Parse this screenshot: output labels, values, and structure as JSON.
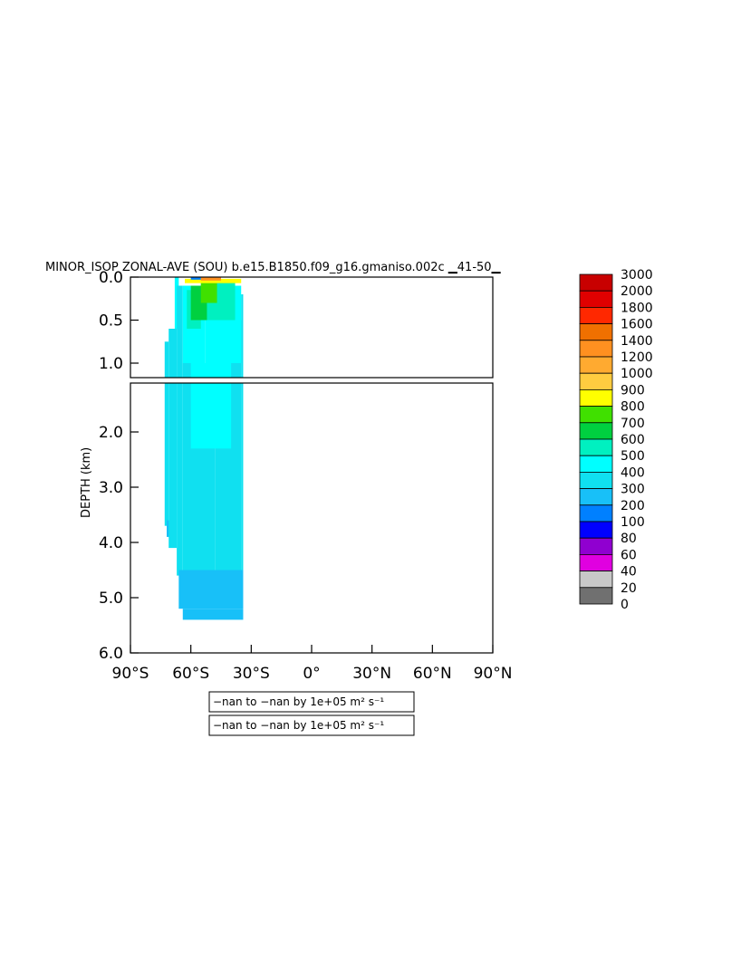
{
  "chart_data": {
    "type": "heatmap",
    "title": "MINOR_ISOP ZONAL-AVE (SOU) b.e15.B1850.f09_g16.gmaniso.002c ▁41-50▁",
    "ylabel": "DEPTH (km)",
    "xlabel": "",
    "xlim": [
      -90,
      90
    ],
    "ylim": [
      6.0,
      0.0
    ],
    "y_break_km": 1.1,
    "x_ticks": [
      -90,
      -60,
      -30,
      0,
      30,
      60,
      90
    ],
    "x_tick_labels": [
      "90°S",
      "60°S",
      "30°S",
      "0°",
      "30°N",
      "60°N",
      "90°N"
    ],
    "y_ticks_upper": [
      0.0,
      0.5,
      1.0
    ],
    "y_tick_labels_upper": [
      "0.0",
      "0.5",
      "1.0"
    ],
    "y_ticks_lower": [
      2.0,
      3.0,
      4.0,
      5.0,
      6.0
    ],
    "y_tick_labels_lower": [
      "2.0",
      "3.0",
      "4.0",
      "5.0",
      "6.0"
    ],
    "colorbar": {
      "levels": [
        "3000",
        "2000",
        "1800",
        "1600",
        "1400",
        "1200",
        "1000",
        "900",
        "800",
        "700",
        "600",
        "500",
        "400",
        "300",
        "200",
        "100",
        "80",
        "60",
        "40",
        "20",
        "0"
      ],
      "colors": [
        "#c80000",
        "#e00000",
        "#ff2800",
        "#f07000",
        "#ff9020",
        "#ffaa30",
        "#ffcc40",
        "#ffff00",
        "#40e000",
        "#00d040",
        "#00f0c0",
        "#00ffff",
        "#10e0f0",
        "#18c0f8",
        "#0080ff",
        "#0000ff",
        "#9000d0",
        "#e000e0",
        "#c8c8c8",
        "#707070"
      ]
    },
    "notes": [
      "−nan to −nan by 1e+05 m² s⁻¹",
      "−nan to −nan by 1e+05 m² s⁻¹"
    ],
    "field": [
      {
        "lat_from": -73,
        "lat_to": -71,
        "depth_from": 0.75,
        "depth_to": 3.7,
        "level": "300"
      },
      {
        "lat_from": -72,
        "lat_to": -70,
        "depth_from": 3.6,
        "depth_to": 3.9,
        "level": "200"
      },
      {
        "lat_from": -71,
        "lat_to": -67,
        "depth_from": 0.6,
        "depth_to": 4.1,
        "level": "300"
      },
      {
        "lat_from": -68,
        "lat_to": -66,
        "depth_from": 0.0,
        "depth_to": 0.6,
        "level": "400"
      },
      {
        "lat_from": -67,
        "lat_to": -64,
        "depth_from": 0.1,
        "depth_to": 4.6,
        "level": "300"
      },
      {
        "lat_from": -64,
        "lat_to": -48,
        "depth_from": 1.0,
        "depth_to": 4.8,
        "level": "300"
      },
      {
        "lat_from": -48,
        "lat_to": -35,
        "depth_from": 0.5,
        "depth_to": 4.5,
        "level": "300"
      },
      {
        "lat_from": -35,
        "lat_to": -34,
        "depth_from": 0.2,
        "depth_to": 4.5,
        "level": "300"
      },
      {
        "lat_from": -64,
        "lat_to": -53,
        "depth_from": 0.1,
        "depth_to": 1.0,
        "level": "400"
      },
      {
        "lat_from": -60,
        "lat_to": -40,
        "depth_from": 1.0,
        "depth_to": 2.3,
        "level": "400"
      },
      {
        "lat_from": -53,
        "lat_to": -35,
        "depth_from": 0.1,
        "depth_to": 1.0,
        "level": "400"
      },
      {
        "lat_from": -62,
        "lat_to": -55,
        "depth_from": 0.15,
        "depth_to": 0.6,
        "level": "500"
      },
      {
        "lat_from": -55,
        "lat_to": -38,
        "depth_from": 0.05,
        "depth_to": 0.5,
        "level": "500"
      },
      {
        "lat_from": -60,
        "lat_to": -52,
        "depth_from": 0.1,
        "depth_to": 0.5,
        "level": "600"
      },
      {
        "lat_from": -55,
        "lat_to": -47,
        "depth_from": 0.05,
        "depth_to": 0.3,
        "level": "700"
      },
      {
        "lat_from": -63,
        "lat_to": -35,
        "depth_from": 0.02,
        "depth_to": 0.07,
        "level": "800"
      },
      {
        "lat_from": -55,
        "lat_to": -45,
        "depth_from": 0.0,
        "depth_to": 0.04,
        "level": "1200"
      },
      {
        "lat_from": -60,
        "lat_to": -55,
        "depth_from": 0.0,
        "depth_to": 0.03,
        "level": "100"
      },
      {
        "lat_from": -66,
        "lat_to": -34,
        "depth_from": 4.5,
        "depth_to": 5.2,
        "level": "200"
      },
      {
        "lat_from": -64,
        "lat_to": -34,
        "depth_from": 5.2,
        "depth_to": 5.4,
        "level": "200"
      }
    ]
  }
}
